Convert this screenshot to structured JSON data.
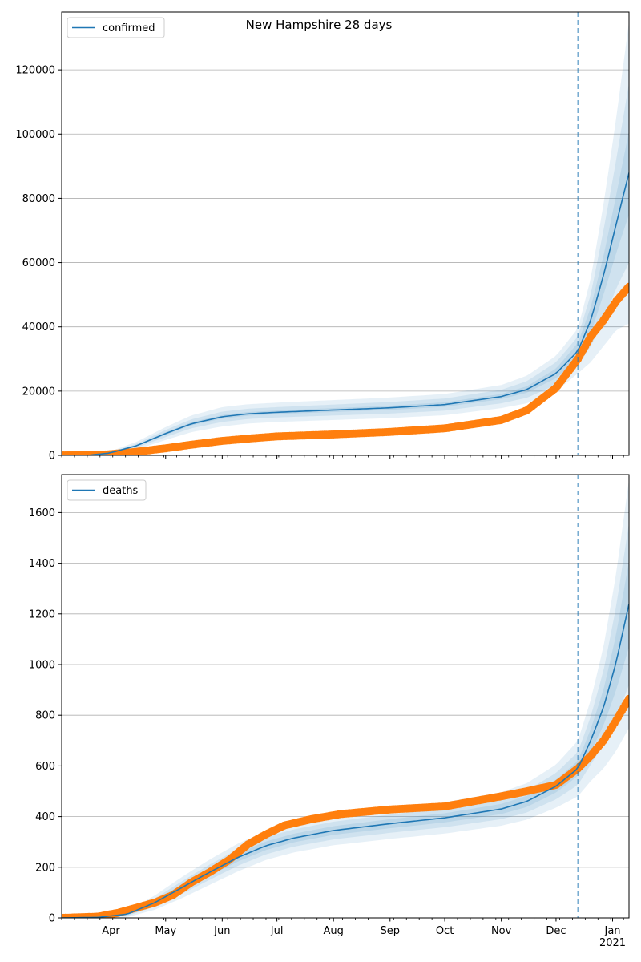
{
  "figure_title": "New Hampshire 28 days",
  "chart_data": [
    {
      "type": "line",
      "legend": "confirmed",
      "legend_placement": "top-left",
      "grid": "horizontal",
      "ylim": [
        0,
        138000
      ],
      "yticks": [
        0,
        20000,
        40000,
        60000,
        80000,
        100000,
        120000
      ],
      "ytick_labels": [
        "0",
        "20000",
        "40000",
        "60000",
        "80000",
        "100000",
        "120000"
      ],
      "xlim": [
        "2020-03-05",
        "2021-01-10"
      ],
      "forecast_start": "2020-12-13",
      "model": {
        "x": [
          "2020-03-05",
          "2020-03-20",
          "2020-03-31",
          "2020-04-15",
          "2020-05-01",
          "2020-05-15",
          "2020-06-01",
          "2020-06-15",
          "2020-07-01",
          "2020-08-01",
          "2020-09-01",
          "2020-10-01",
          "2020-11-01",
          "2020-11-15",
          "2020-12-01",
          "2020-12-13",
          "2020-12-20",
          "2020-12-27",
          "2021-01-03",
          "2021-01-10"
        ],
        "y": [
          0,
          50,
          700,
          3000,
          6800,
          9800,
          12000,
          12900,
          13400,
          14100,
          14800,
          15800,
          18300,
          20500,
          25500,
          32500,
          42000,
          56000,
          72000,
          88000
        ],
        "band_inner_width": [
          0,
          10,
          60,
          200,
          400,
          500,
          550,
          550,
          550,
          600,
          650,
          700,
          800,
          1000,
          1500,
          2500,
          4000,
          6000,
          9000,
          13000
        ],
        "band_mid_width": [
          0,
          30,
          200,
          600,
          1100,
          1400,
          1600,
          1600,
          1600,
          1700,
          1800,
          1900,
          2100,
          2600,
          3500,
          4500,
          8000,
          14000,
          20000,
          28000
        ],
        "band_outer_width": [
          0,
          60,
          400,
          1200,
          2000,
          2600,
          3000,
          3000,
          3000,
          3100,
          3200,
          3300,
          3600,
          4300,
          5500,
          7000,
          13000,
          22000,
          33000,
          47000
        ]
      },
      "observed": {
        "x": [
          "2020-03-05",
          "2020-03-25",
          "2020-04-01",
          "2020-04-15",
          "2020-05-01",
          "2020-05-15",
          "2020-06-01",
          "2020-06-15",
          "2020-07-01",
          "2020-08-01",
          "2020-09-01",
          "2020-10-01",
          "2020-11-01",
          "2020-11-15",
          "2020-12-01",
          "2020-12-13",
          "2020-12-20",
          "2020-12-27",
          "2021-01-03",
          "2021-01-10"
        ],
        "y": [
          0,
          100,
          400,
          1100,
          2200,
          3300,
          4500,
          5200,
          5900,
          6500,
          7300,
          8400,
          11000,
          14000,
          21000,
          30000,
          37000,
          42000,
          48000,
          52500
        ]
      }
    },
    {
      "type": "line",
      "legend": "deaths",
      "legend_placement": "top-left",
      "grid": "horizontal",
      "ylim": [
        0,
        1750
      ],
      "yticks": [
        0,
        200,
        400,
        600,
        800,
        1000,
        1200,
        1400,
        1600
      ],
      "ytick_labels": [
        "0",
        "200",
        "400",
        "600",
        "800",
        "1000",
        "1200",
        "1400",
        "1600"
      ],
      "xlim": [
        "2020-03-05",
        "2021-01-10"
      ],
      "forecast_start": "2020-12-13",
      "model": {
        "x": [
          "2020-03-05",
          "2020-03-25",
          "2020-04-10",
          "2020-04-25",
          "2020-05-10",
          "2020-05-25",
          "2020-06-10",
          "2020-06-25",
          "2020-07-10",
          "2020-08-01",
          "2020-09-01",
          "2020-10-01",
          "2020-11-01",
          "2020-11-15",
          "2020-12-01",
          "2020-12-13",
          "2020-12-20",
          "2020-12-27",
          "2021-01-03",
          "2021-01-10"
        ],
        "y": [
          0,
          2,
          15,
          60,
          120,
          180,
          240,
          285,
          315,
          345,
          372,
          395,
          430,
          460,
          520,
          590,
          700,
          830,
          1010,
          1240
        ],
        "band_inner_width": [
          0,
          1,
          3,
          8,
          12,
          14,
          16,
          17,
          17,
          17,
          18,
          18,
          20,
          22,
          25,
          30,
          45,
          70,
          110,
          170
        ],
        "band_mid_width": [
          0,
          2,
          7,
          16,
          25,
          30,
          33,
          34,
          34,
          35,
          36,
          37,
          40,
          44,
          52,
          65,
          95,
          145,
          220,
          320
        ],
        "band_outer_width": [
          0,
          4,
          12,
          28,
          42,
          50,
          55,
          56,
          57,
          58,
          60,
          62,
          66,
          72,
          85,
          110,
          160,
          240,
          350,
          490
        ]
      },
      "observed": {
        "x": [
          "2020-03-05",
          "2020-03-25",
          "2020-04-05",
          "2020-04-15",
          "2020-04-25",
          "2020-05-05",
          "2020-05-15",
          "2020-05-25",
          "2020-06-05",
          "2020-06-15",
          "2020-06-25",
          "2020-07-05",
          "2020-07-20",
          "2020-08-05",
          "2020-09-01",
          "2020-10-01",
          "2020-11-01",
          "2020-11-15",
          "2020-12-01",
          "2020-12-13",
          "2020-12-20",
          "2020-12-27",
          "2021-01-03",
          "2021-01-10"
        ],
        "y": [
          0,
          5,
          20,
          40,
          60,
          90,
          140,
          180,
          230,
          290,
          330,
          365,
          390,
          410,
          428,
          440,
          480,
          500,
          525,
          590,
          640,
          700,
          780,
          865
        ]
      }
    }
  ],
  "xtick_labels": [
    {
      "date": "2020-04-01",
      "label": "Apr"
    },
    {
      "date": "2020-05-01",
      "label": "May"
    },
    {
      "date": "2020-06-01",
      "label": "Jun"
    },
    {
      "date": "2020-07-01",
      "label": "Jul"
    },
    {
      "date": "2020-08-01",
      "label": "Aug"
    },
    {
      "date": "2020-09-01",
      "label": "Sep"
    },
    {
      "date": "2020-10-01",
      "label": "Oct"
    },
    {
      "date": "2020-11-01",
      "label": "Nov"
    },
    {
      "date": "2020-12-01",
      "label": "Dec"
    },
    {
      "date": "2021-01-01",
      "label": "Jan\n2021"
    }
  ],
  "colors": {
    "model": "#1f77b4",
    "observed": "#ff7f0e",
    "band": "#1f77b4",
    "grid": "#b0b0b0",
    "vline": "#1f77b4"
  }
}
